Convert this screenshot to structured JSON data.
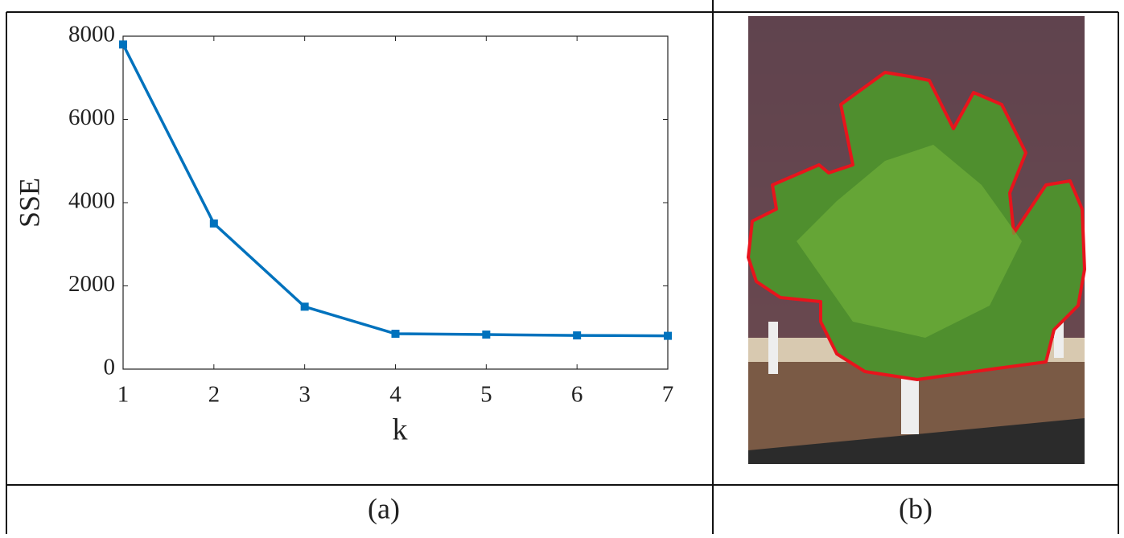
{
  "chart_data": {
    "type": "line",
    "x_label": "k",
    "y_label": "SSE",
    "x": [
      1,
      2,
      3,
      4,
      5,
      6,
      7
    ],
    "series": [
      {
        "name": "SSE",
        "color": "#0072bd",
        "values": [
          7800,
          3500,
          1500,
          850,
          830,
          810,
          800
        ]
      }
    ],
    "xlim": [
      1,
      7
    ],
    "xticks": [
      1,
      2,
      3,
      4,
      5,
      6,
      7
    ],
    "ylim": [
      0,
      8000
    ],
    "yticks": [
      0,
      2000,
      4000,
      6000,
      8000
    ]
  },
  "captions": [
    "(a)",
    "(b)"
  ]
}
